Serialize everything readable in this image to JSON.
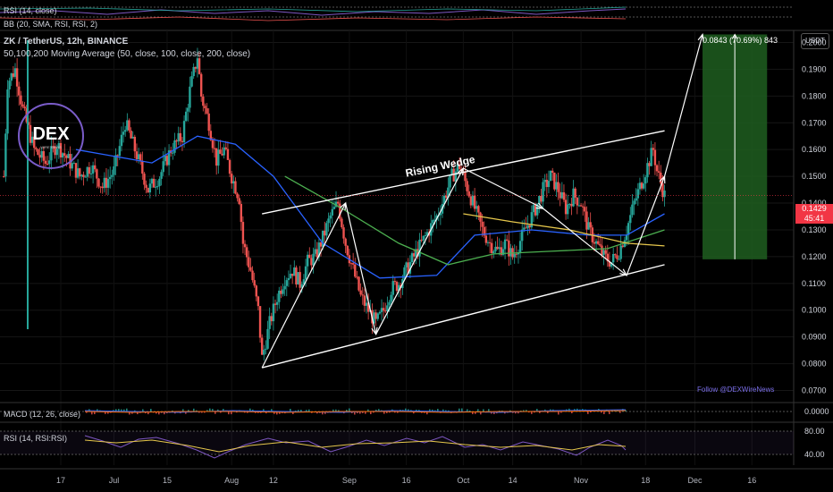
{
  "header": {
    "symbol_line": "ZK / TetherUS, 12h, BINANCE",
    "ma_line": "50,100,200 Moving Average (50, close, 100, close, 200, close)",
    "top_rsi": "RSI (14, close)",
    "top_bb": "BB (20, SMA, RSI, RSI, 2)"
  },
  "currency_button": "USDT",
  "current_price": {
    "value": "0.1429",
    "countdown": "45:41"
  },
  "target_label": "0.0843 (70.69%) 843",
  "follow_text": "Follow @DEXWireNews",
  "logo_text": "DEX",
  "logo_subtext": "WIRE NEWS",
  "pattern_label": "Rising Wedge",
  "colors": {
    "bull": "#26a69a",
    "bear": "#ef5350",
    "ma50": "#2962ff",
    "ma100": "#4caf50",
    "ma200": "#e6c74c",
    "target_zone": "#1e5e20",
    "price_box": "#f23645",
    "accent": "#7a6ee8"
  },
  "chart_data": [
    {
      "type": "candlestick",
      "title": "ZK / TetherUS, 12h, BINANCE",
      "y_ticks": [
        "0.2000",
        "0.1900",
        "0.1800",
        "0.1700",
        "0.1600",
        "0.1500",
        "0.1400",
        "0.1300",
        "0.1200",
        "0.1100",
        "0.1000",
        "0.0900",
        "0.0800",
        "0.0700"
      ],
      "y_tick_values": [
        0.2,
        0.19,
        0.18,
        0.17,
        0.16,
        0.15,
        0.14,
        0.13,
        0.12,
        0.11,
        0.1,
        0.09,
        0.08,
        0.07
      ],
      "ylim": [
        0.0655,
        0.2045
      ],
      "x_ticks": [
        "17",
        "Jul",
        "15",
        "Aug",
        "12",
        "Sep",
        "16",
        "Oct",
        "14",
        "Nov",
        "18",
        "Dec",
        "16"
      ],
      "x_tick_days": [
        -14,
        0,
        14,
        31,
        42,
        62,
        77,
        92,
        105,
        123,
        140,
        153,
        168
      ],
      "xlim": [
        -30,
        179
      ],
      "x_unit": "days since Jul 1",
      "price_path": [
        [
          -29,
          0.15
        ],
        [
          -28,
          0.185
        ],
        [
          -26,
          0.19
        ],
        [
          -24,
          0.175
        ],
        [
          -21,
          0.16
        ],
        [
          -18,
          0.155
        ],
        [
          -15,
          0.162
        ],
        [
          -12,
          0.156
        ],
        [
          -9,
          0.15
        ],
        [
          -6,
          0.154
        ],
        [
          -3,
          0.146
        ],
        [
          0,
          0.152
        ],
        [
          3,
          0.17
        ],
        [
          6,
          0.158
        ],
        [
          9,
          0.145
        ],
        [
          12,
          0.15
        ],
        [
          15,
          0.16
        ],
        [
          18,
          0.165
        ],
        [
          20,
          0.182
        ],
        [
          22,
          0.195
        ],
        [
          23,
          0.18
        ],
        [
          25,
          0.17
        ],
        [
          27,
          0.156
        ],
        [
          29,
          0.16
        ],
        [
          31,
          0.15
        ],
        [
          33,
          0.142
        ],
        [
          34,
          0.125
        ],
        [
          36,
          0.115
        ],
        [
          38,
          0.1
        ],
        [
          39,
          0.082
        ],
        [
          41,
          0.095
        ],
        [
          43,
          0.105
        ],
        [
          45,
          0.112
        ],
        [
          47,
          0.115
        ],
        [
          49,
          0.11
        ],
        [
          51,
          0.118
        ],
        [
          53,
          0.12
        ],
        [
          55,
          0.127
        ],
        [
          57,
          0.135
        ],
        [
          59,
          0.14
        ],
        [
          61,
          0.125
        ],
        [
          63,
          0.115
        ],
        [
          65,
          0.105
        ],
        [
          67,
          0.1
        ],
        [
          69,
          0.095
        ],
        [
          71,
          0.1
        ],
        [
          73,
          0.108
        ],
        [
          75,
          0.11
        ],
        [
          77,
          0.115
        ],
        [
          79,
          0.12
        ],
        [
          81,
          0.125
        ],
        [
          83,
          0.13
        ],
        [
          85,
          0.135
        ],
        [
          87,
          0.142
        ],
        [
          89,
          0.15
        ],
        [
          91,
          0.154
        ],
        [
          93,
          0.146
        ],
        [
          95,
          0.138
        ],
        [
          97,
          0.13
        ],
        [
          99,
          0.125
        ],
        [
          101,
          0.122
        ],
        [
          103,
          0.125
        ],
        [
          105,
          0.12
        ],
        [
          107,
          0.126
        ],
        [
          109,
          0.132
        ],
        [
          111,
          0.138
        ],
        [
          113,
          0.145
        ],
        [
          115,
          0.15
        ],
        [
          117,
          0.145
        ],
        [
          119,
          0.138
        ],
        [
          121,
          0.143
        ],
        [
          123,
          0.14
        ],
        [
          125,
          0.13
        ],
        [
          127,
          0.125
        ],
        [
          129,
          0.12
        ],
        [
          131,
          0.118
        ],
        [
          133,
          0.122
        ],
        [
          135,
          0.13
        ],
        [
          137,
          0.14
        ],
        [
          139,
          0.148
        ],
        [
          141,
          0.156
        ],
        [
          142,
          0.16
        ],
        [
          143,
          0.152
        ],
        [
          145,
          0.1429
        ]
      ],
      "ma50": [
        [
          -10,
          0.16
        ],
        [
          10,
          0.155
        ],
        [
          22,
          0.165
        ],
        [
          32,
          0.162
        ],
        [
          42,
          0.15
        ],
        [
          55,
          0.125
        ],
        [
          70,
          0.112
        ],
        [
          85,
          0.113
        ],
        [
          95,
          0.128
        ],
        [
          110,
          0.13
        ],
        [
          125,
          0.128
        ],
        [
          135,
          0.128
        ],
        [
          145,
          0.136
        ]
      ],
      "ma100": [
        [
          45,
          0.15
        ],
        [
          60,
          0.138
        ],
        [
          75,
          0.125
        ],
        [
          88,
          0.117
        ],
        [
          100,
          0.121
        ],
        [
          115,
          0.122
        ],
        [
          130,
          0.123
        ],
        [
          145,
          0.13
        ]
      ],
      "ma200": [
        [
          92,
          0.136
        ],
        [
          105,
          0.133
        ],
        [
          120,
          0.13
        ],
        [
          135,
          0.125
        ],
        [
          145,
          0.124
        ]
      ],
      "wedge_upper": [
        [
          39,
          0.136
        ],
        [
          145,
          0.167
        ]
      ],
      "wedge_lower": [
        [
          39,
          0.0785
        ],
        [
          145,
          0.117
        ]
      ],
      "zigzag": [
        [
          39,
          0.0785
        ],
        [
          61,
          0.14
        ],
        [
          69,
          0.091
        ],
        [
          92,
          0.153
        ],
        [
          113,
          0.138
        ],
        [
          135,
          0.113
        ],
        [
          145,
          0.15
        ],
        [
          155,
          0.203
        ]
      ],
      "target_zone": {
        "x_start": 155,
        "x_end": 172,
        "y_top": 0.203,
        "y_bottom": 0.119
      },
      "current_price": 0.1429
    },
    {
      "type": "line",
      "title": "MACD (12, 26, close)",
      "y_ticks": [
        "0.0000"
      ],
      "y_tick_values": [
        0.0
      ]
    },
    {
      "type": "line",
      "title": "RSI (14, RSI:RSI)",
      "y_ticks": [
        "80.00",
        "40.00"
      ],
      "y_tick_values": [
        80,
        40
      ],
      "ylim": [
        20,
        100
      ]
    }
  ]
}
